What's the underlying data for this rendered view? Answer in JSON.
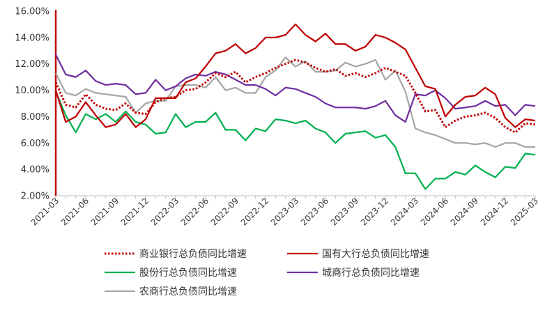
{
  "chart_data": {
    "type": "line",
    "title": "",
    "xlabel": "",
    "ylabel": "",
    "ylim": [
      0.02,
      0.16
    ],
    "y_ticks": [
      "2.00%",
      "4.00%",
      "6.00%",
      "8.00%",
      "10.00%",
      "12.00%",
      "14.00%",
      "16.00%"
    ],
    "x_ticks": [
      "2021-03",
      "2021-06",
      "2021-09",
      "2021-12",
      "2022-03",
      "2022-06",
      "2022-09",
      "2022-12",
      "2023-03",
      "2023-06",
      "2023-09",
      "2023-12",
      "2024-03",
      "2024-06",
      "2024-09",
      "2024-12",
      "2025-03"
    ],
    "x": [
      "2021-03",
      "2021-04",
      "2021-05",
      "2021-06",
      "2021-07",
      "2021-08",
      "2021-09",
      "2021-10",
      "2021-11",
      "2021-12",
      "2022-01",
      "2022-02",
      "2022-03",
      "2022-04",
      "2022-05",
      "2022-06",
      "2022-07",
      "2022-08",
      "2022-09",
      "2022-10",
      "2022-11",
      "2022-12",
      "2023-01",
      "2023-02",
      "2023-03",
      "2023-04",
      "2023-05",
      "2023-06",
      "2023-07",
      "2023-08",
      "2023-09",
      "2023-10",
      "2023-11",
      "2023-12",
      "2024-01",
      "2024-02",
      "2024-03",
      "2024-04",
      "2024-05",
      "2024-06",
      "2024-07",
      "2024-08",
      "2024-09",
      "2024-10",
      "2024-11",
      "2024-12",
      "2025-01",
      "2025-02",
      "2025-03"
    ],
    "legend_position": "bottom",
    "grid": false,
    "series": [
      {
        "name": "商业银行总负债同比增速",
        "color": "#C00000",
        "style": "dotted",
        "values": [
          0.106,
          0.089,
          0.087,
          0.097,
          0.089,
          0.086,
          0.085,
          0.09,
          0.083,
          0.082,
          0.091,
          0.094,
          0.095,
          0.1,
          0.101,
          0.106,
          0.113,
          0.11,
          0.114,
          0.106,
          0.11,
          0.113,
          0.117,
          0.12,
          0.123,
          0.121,
          0.117,
          0.114,
          0.116,
          0.111,
          0.113,
          0.11,
          0.113,
          0.117,
          0.114,
          0.111,
          0.098,
          0.084,
          0.085,
          0.072,
          0.077,
          0.08,
          0.081,
          0.083,
          0.079,
          0.072,
          0.068,
          0.075,
          0.074
        ]
      },
      {
        "name": "国有大行总负债同比增速",
        "color": "#C00000",
        "style": "solid",
        "values": [
          0.1,
          0.076,
          0.08,
          0.091,
          0.081,
          0.072,
          0.074,
          0.082,
          0.072,
          0.078,
          0.094,
          0.094,
          0.094,
          0.106,
          0.109,
          0.118,
          0.128,
          0.13,
          0.135,
          0.128,
          0.132,
          0.14,
          0.14,
          0.142,
          0.15,
          0.142,
          0.137,
          0.143,
          0.135,
          0.135,
          0.13,
          0.133,
          0.142,
          0.14,
          0.136,
          0.131,
          0.117,
          0.103,
          0.101,
          0.08,
          0.089,
          0.095,
          0.096,
          0.102,
          0.097,
          0.079,
          0.072,
          0.078,
          0.077
        ]
      },
      {
        "name": "股份行总负债同比增速",
        "color": "#00B050",
        "style": "solid",
        "values": [
          0.099,
          0.081,
          0.068,
          0.082,
          0.078,
          0.082,
          0.076,
          0.084,
          0.076,
          0.074,
          0.067,
          0.068,
          0.082,
          0.072,
          0.076,
          0.076,
          0.083,
          0.07,
          0.07,
          0.062,
          0.071,
          0.069,
          0.078,
          0.077,
          0.075,
          0.077,
          0.071,
          0.068,
          0.06,
          0.067,
          0.068,
          0.069,
          0.064,
          0.066,
          0.057,
          0.037,
          0.037,
          0.025,
          0.033,
          0.033,
          0.038,
          0.036,
          0.043,
          0.038,
          0.034,
          0.042,
          0.041,
          0.052,
          0.051
        ]
      },
      {
        "name": "城商行总负债同比增速",
        "color": "#7030A0",
        "style": "solid",
        "values": [
          0.127,
          0.112,
          0.11,
          0.115,
          0.107,
          0.104,
          0.105,
          0.104,
          0.097,
          0.098,
          0.108,
          0.1,
          0.103,
          0.109,
          0.112,
          0.111,
          0.114,
          0.112,
          0.108,
          0.104,
          0.104,
          0.101,
          0.096,
          0.102,
          0.101,
          0.098,
          0.095,
          0.09,
          0.087,
          0.087,
          0.087,
          0.086,
          0.088,
          0.092,
          0.081,
          0.076,
          0.097,
          0.096,
          0.1,
          0.094,
          0.086,
          0.087,
          0.088,
          0.092,
          0.088,
          0.089,
          0.081,
          0.089,
          0.088
        ]
      },
      {
        "name": "农商行总负债同比增速",
        "color": "#A6A6A6",
        "style": "solid",
        "values": [
          0.113,
          0.098,
          0.096,
          0.101,
          0.098,
          0.097,
          0.096,
          0.095,
          0.083,
          0.09,
          0.092,
          0.092,
          0.103,
          0.104,
          0.104,
          0.102,
          0.11,
          0.1,
          0.102,
          0.098,
          0.098,
          0.11,
          0.115,
          0.125,
          0.118,
          0.122,
          0.114,
          0.114,
          0.115,
          0.121,
          0.118,
          0.12,
          0.123,
          0.108,
          0.115,
          0.099,
          0.071,
          0.068,
          0.066,
          0.063,
          0.06,
          0.06,
          0.059,
          0.06,
          0.057,
          0.06,
          0.06,
          0.057,
          0.057
        ]
      }
    ]
  }
}
